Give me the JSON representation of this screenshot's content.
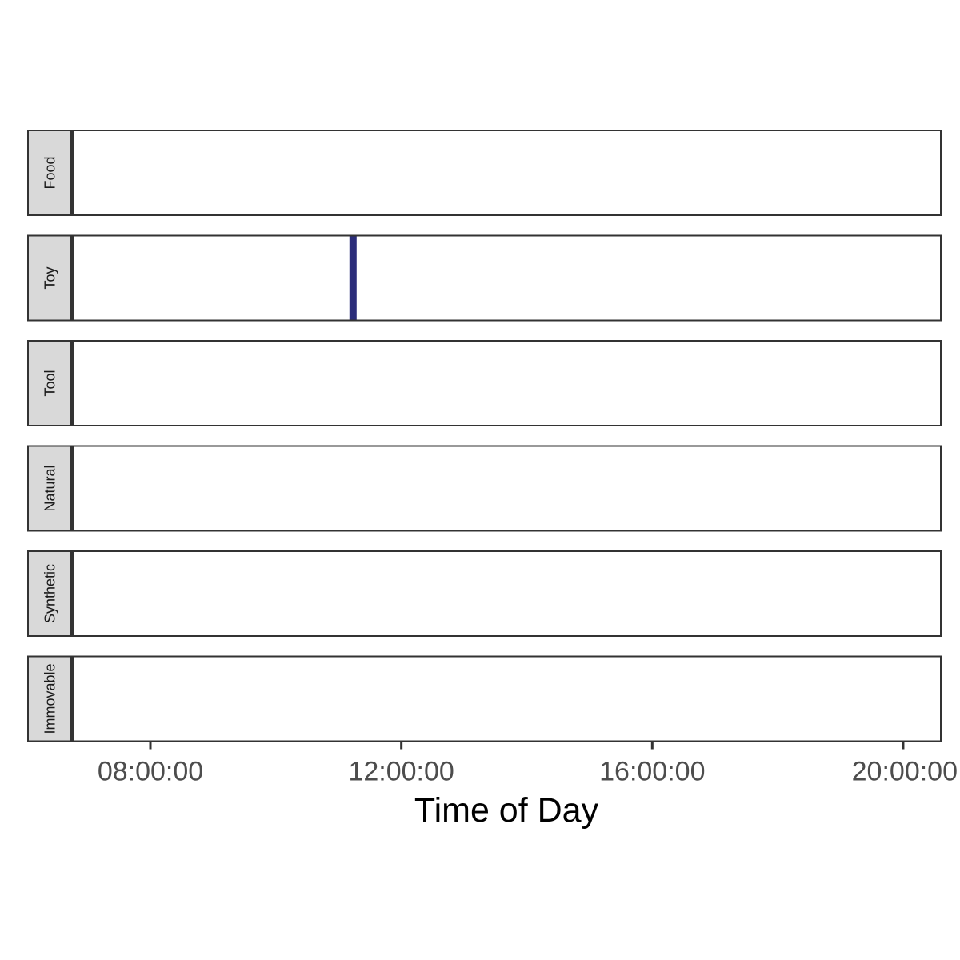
{
  "chart_data": {
    "type": "line",
    "chart_subtype": "event-timeline-facets",
    "xlabel": "Time of Day",
    "x_ticks": [
      "08:00:00",
      "12:00:00",
      "16:00:00",
      "20:00:00"
    ],
    "x_tick_hours": [
      8,
      12,
      16,
      20
    ],
    "xlim_hours": [
      6.75,
      20.6
    ],
    "facets": [
      "Food",
      "Toy",
      "Tool",
      "Natural",
      "Synthetic",
      "Immovable"
    ],
    "events": [
      {
        "facet": "Toy",
        "time": "11:14:00",
        "time_hours": 11.23
      }
    ],
    "colors": {
      "event": "#2b2d7a",
      "strip_fill": "#d9d9d9",
      "border": "#333333",
      "tick_text": "#4d4d4d"
    },
    "grid": false,
    "legend": "none"
  }
}
